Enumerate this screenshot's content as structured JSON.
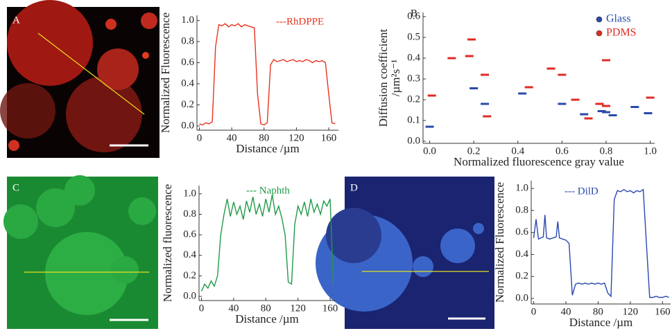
{
  "panels": [
    "A",
    "B",
    "C",
    "D"
  ],
  "chart_data": [
    {
      "type": "line",
      "x_label": "Distance /µm",
      "y_label": [
        "Normalized Fluorescence"
      ],
      "xlim": [
        -3,
        172
      ],
      "ylim": [
        -0.04,
        1.05
      ],
      "xticks": [
        0,
        40,
        80,
        120,
        160
      ],
      "yticks": [
        {
          "value": 0,
          "label": "0.0"
        },
        0.2,
        0.4,
        0.6,
        0.8,
        {
          "value": 1,
          "label": "1.0"
        }
      ],
      "legend": "top-right",
      "series": [
        {
          "name": "---RhDPPE",
          "color": "#e8321e",
          "x": [
            0,
            4,
            8,
            12,
            16,
            20,
            24,
            28,
            32,
            36,
            40,
            44,
            48,
            52,
            56,
            60,
            64,
            68,
            72,
            76,
            80,
            84,
            88,
            92,
            96,
            100,
            104,
            108,
            112,
            116,
            120,
            124,
            128,
            132,
            136,
            140,
            144,
            148,
            152,
            156,
            160,
            164,
            168
          ],
          "values": [
            0.02,
            0.01,
            0.03,
            0.02,
            0.04,
            0.75,
            0.96,
            0.95,
            0.97,
            0.94,
            0.96,
            0.95,
            0.97,
            0.94,
            0.96,
            0.95,
            0.94,
            0.93,
            0.3,
            0.02,
            0.01,
            0.03,
            0.58,
            0.63,
            0.61,
            0.62,
            0.63,
            0.61,
            0.62,
            0.63,
            0.61,
            0.62,
            0.61,
            0.63,
            0.62,
            0.6,
            0.62,
            0.61,
            0.62,
            0.6,
            0.3,
            0.03,
            0.02
          ]
        }
      ]
    },
    {
      "type": "scatter",
      "x_label": "Normalized fluorescence gray value",
      "y_label": [
        "Diffusion coefficient",
        "/µm²s⁻¹"
      ],
      "xlim": [
        -0.03,
        1.02
      ],
      "ylim": [
        -0.01,
        0.62
      ],
      "xticks": [
        {
          "value": 0,
          "label": "0.0"
        },
        0.2,
        0.4,
        0.6,
        0.8,
        {
          "value": 1,
          "label": "1.0"
        }
      ],
      "yticks": [
        {
          "value": 0,
          "label": "0.0"
        },
        0.1,
        0.2,
        0.3,
        0.4,
        0.5,
        0.6
      ],
      "legend": "top-right",
      "series": [
        {
          "name": "Glass",
          "color": "#2a4aa8",
          "x": [
            0.0,
            0.2,
            0.25,
            0.42,
            0.6,
            0.7,
            0.78,
            0.8,
            0.83,
            0.93,
            0.99
          ],
          "values": [
            0.07,
            0.255,
            0.18,
            0.23,
            0.18,
            0.13,
            0.145,
            0.14,
            0.125,
            0.165,
            0.135
          ]
        },
        {
          "name": "PDMS",
          "color": "#e02a22",
          "x": [
            0.01,
            0.1,
            0.18,
            0.19,
            0.25,
            0.26,
            0.45,
            0.55,
            0.6,
            0.66,
            0.72,
            0.77,
            0.8,
            0.8,
            1.0
          ],
          "values": [
            0.22,
            0.4,
            0.41,
            0.49,
            0.32,
            0.12,
            0.26,
            0.35,
            0.32,
            0.2,
            0.11,
            0.18,
            0.17,
            0.39,
            0.21
          ]
        }
      ]
    },
    {
      "type": "line",
      "x_label": "Distance /µm",
      "y_label": [
        "Normalized fluorescence"
      ],
      "xlim": [
        -3,
        166
      ],
      "ylim": [
        -0.04,
        1.08
      ],
      "xticks": [
        0,
        40,
        80,
        120,
        160
      ],
      "yticks": [
        {
          "value": 0,
          "label": "0.0"
        },
        0.2,
        0.4,
        0.6,
        0.8,
        {
          "value": 1,
          "label": "1.0"
        }
      ],
      "legend": "top-center",
      "series": [
        {
          "name": "--- Naphth",
          "color": "#1f9a48",
          "x": [
            0,
            4,
            8,
            12,
            16,
            20,
            24,
            28,
            32,
            36,
            40,
            44,
            48,
            52,
            56,
            60,
            64,
            68,
            72,
            76,
            80,
            84,
            88,
            92,
            96,
            100,
            104,
            108,
            112,
            116,
            120,
            124,
            128,
            132,
            136,
            140,
            144,
            148,
            152,
            156,
            160,
            164
          ],
          "values": [
            0.05,
            0.12,
            0.08,
            0.15,
            0.1,
            0.2,
            0.6,
            0.8,
            0.95,
            0.78,
            0.92,
            0.8,
            0.88,
            0.75,
            0.93,
            0.82,
            0.97,
            0.8,
            0.9,
            0.78,
            0.95,
            0.82,
            0.99,
            0.8,
            0.88,
            0.76,
            0.6,
            0.14,
            0.12,
            0.7,
            0.88,
            0.8,
            0.92,
            0.78,
            0.95,
            0.82,
            0.9,
            0.8,
            0.93,
            0.88,
            0.95,
            0.12
          ]
        }
      ]
    },
    {
      "type": "line",
      "x_label": "Distance /µm",
      "y_label": [
        "Normalized Fluorescence"
      ],
      "xlim": [
        -3,
        170
      ],
      "ylim": [
        -0.05,
        1.07
      ],
      "xticks": [
        0,
        40,
        80,
        120,
        160
      ],
      "yticks": [
        {
          "value": 0,
          "label": "0.0"
        },
        0.2,
        0.4,
        0.6,
        0.8,
        {
          "value": 1,
          "label": "1.0"
        }
      ],
      "legend": "top-left",
      "series": [
        {
          "name": "--- DilD",
          "color": "#2a48b0",
          "x": [
            0,
            3,
            6,
            9,
            12,
            14,
            16,
            20,
            24,
            28,
            30,
            32,
            36,
            40,
            44,
            48,
            52,
            56,
            60,
            64,
            68,
            72,
            76,
            80,
            84,
            88,
            92,
            96,
            100,
            104,
            108,
            112,
            116,
            120,
            124,
            128,
            132,
            136,
            140,
            144,
            148,
            152,
            156,
            160,
            164,
            168
          ],
          "values": [
            0.55,
            0.72,
            0.54,
            0.55,
            0.56,
            0.76,
            0.55,
            0.54,
            0.55,
            0.56,
            0.7,
            0.55,
            0.54,
            0.53,
            0.5,
            0.03,
            0.13,
            0.14,
            0.13,
            0.14,
            0.13,
            0.14,
            0.13,
            0.14,
            0.13,
            0.14,
            0.05,
            0.02,
            0.9,
            0.98,
            0.97,
            0.99,
            0.97,
            0.98,
            0.96,
            0.98,
            0.97,
            0.99,
            0.5,
            0.01,
            0.01,
            0.02,
            0.01,
            0.01,
            0.02,
            0.01
          ]
        }
      ]
    }
  ]
}
